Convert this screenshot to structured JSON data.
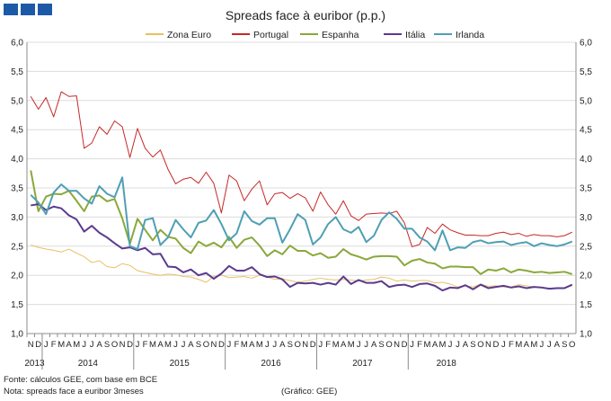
{
  "brand_color": "#1c5aa8",
  "footer": {
    "source": "Fonte: cálculos GEE, com base em BCE",
    "note": "Nota: spreads face a euribor 3meses",
    "credit": "(Gráfico: GEE)"
  },
  "chart_data": {
    "type": "line",
    "title": "Spreads face à euribor (p.p.)",
    "ylim": [
      1.0,
      6.0
    ],
    "yticks": [
      "1,0",
      "1,5",
      "2,0",
      "2,5",
      "3,0",
      "3,5",
      "4,0",
      "4,5",
      "5,0",
      "5,5",
      "6,0"
    ],
    "x": [
      "N",
      "D",
      "J",
      "F",
      "M",
      "A",
      "M",
      "J",
      "J",
      "A",
      "S",
      "O",
      "N",
      "D",
      "J",
      "F",
      "M",
      "A",
      "M",
      "J",
      "J",
      "A",
      "S",
      "O",
      "N",
      "D",
      "J",
      "F",
      "M",
      "A",
      "M",
      "J",
      "J",
      "A",
      "S",
      "O",
      "N",
      "D",
      "J",
      "F",
      "M",
      "A",
      "M",
      "J",
      "J",
      "A",
      "S",
      "O",
      "N",
      "D",
      "J",
      "F",
      "M",
      "A",
      "M",
      "J",
      "J",
      "A",
      "S",
      "O",
      "N",
      "D",
      "J",
      "F",
      "M",
      "A",
      "M",
      "J",
      "J",
      "A",
      "S",
      "O"
    ],
    "years": [
      {
        "label": "2013",
        "start": 0,
        "end": 1
      },
      {
        "label": "2014",
        "start": 2,
        "end": 13
      },
      {
        "label": "2015",
        "start": 14,
        "end": 25
      },
      {
        "label": "2016",
        "start": 26,
        "end": 37
      },
      {
        "label": "2017",
        "start": 38,
        "end": 49
      },
      {
        "label": "2018",
        "start": 50,
        "end": 59
      }
    ],
    "grid": true,
    "legend_position": "top",
    "series": [
      {
        "name": "Zona Euro",
        "color": "#e8c061",
        "width": 1,
        "values": [
          2.52,
          2.48,
          2.45,
          2.43,
          2.4,
          2.45,
          2.38,
          2.32,
          2.22,
          2.25,
          2.15,
          2.13,
          2.2,
          2.17,
          2.08,
          2.05,
          2.02,
          2.0,
          2.02,
          2.01,
          1.98,
          1.97,
          1.93,
          1.88,
          1.98,
          2.0,
          1.96,
          1.97,
          1.98,
          1.95,
          2.0,
          1.97,
          1.93,
          1.94,
          1.91,
          1.88,
          1.9,
          1.93,
          1.95,
          1.93,
          1.92,
          1.93,
          1.92,
          1.9,
          1.92,
          1.93,
          1.97,
          1.95,
          1.9,
          1.92,
          1.9,
          1.91,
          1.91,
          1.87,
          1.88,
          1.85,
          1.8,
          1.82,
          1.8,
          1.85,
          1.81,
          1.82,
          1.8,
          1.8,
          1.84,
          1.82,
          1.8,
          1.8,
          1.77,
          1.78,
          1.78,
          1.82
        ]
      },
      {
        "name": "Portugal",
        "color": "#c62828",
        "width": 1,
        "values": [
          5.07,
          4.85,
          5.05,
          4.72,
          5.15,
          5.07,
          5.08,
          4.18,
          4.27,
          4.55,
          4.42,
          4.65,
          4.55,
          4.02,
          4.52,
          4.18,
          4.03,
          4.15,
          3.82,
          3.57,
          3.65,
          3.68,
          3.58,
          3.77,
          3.58,
          3.07,
          3.72,
          3.62,
          3.28,
          3.48,
          3.62,
          3.21,
          3.4,
          3.42,
          3.32,
          3.4,
          3.33,
          3.1,
          3.43,
          3.21,
          3.05,
          3.28,
          3.02,
          2.94,
          3.05,
          3.06,
          3.07,
          3.06,
          3.1,
          2.9,
          2.49,
          2.53,
          2.82,
          2.72,
          2.88,
          2.78,
          2.73,
          2.69,
          2.69,
          2.68,
          2.68,
          2.72,
          2.74,
          2.7,
          2.72,
          2.67,
          2.7,
          2.68,
          2.68,
          2.66,
          2.68,
          2.74
        ]
      },
      {
        "name": "Espanha",
        "color": "#8aa83a",
        "width": 2,
        "values": [
          3.8,
          3.1,
          3.35,
          3.4,
          3.39,
          3.45,
          3.28,
          3.1,
          3.35,
          3.37,
          3.27,
          3.31,
          2.98,
          2.54,
          2.97,
          2.78,
          2.6,
          2.78,
          2.66,
          2.63,
          2.47,
          2.38,
          2.58,
          2.5,
          2.56,
          2.48,
          2.66,
          2.47,
          2.61,
          2.65,
          2.51,
          2.33,
          2.43,
          2.36,
          2.51,
          2.42,
          2.42,
          2.34,
          2.38,
          2.3,
          2.32,
          2.45,
          2.36,
          2.32,
          2.27,
          2.32,
          2.33,
          2.33,
          2.32,
          2.17,
          2.25,
          2.28,
          2.22,
          2.2,
          2.12,
          2.15,
          2.15,
          2.14,
          2.14,
          2.02,
          2.1,
          2.08,
          2.12,
          2.05,
          2.1,
          2.08,
          2.05,
          2.06,
          2.04,
          2.05,
          2.06,
          2.02
        ]
      },
      {
        "name": "Itália",
        "color": "#5b3a8e",
        "width": 2,
        "values": [
          3.2,
          3.22,
          3.12,
          3.18,
          3.15,
          3.03,
          2.96,
          2.75,
          2.85,
          2.73,
          2.65,
          2.55,
          2.46,
          2.48,
          2.43,
          2.47,
          2.36,
          2.37,
          2.15,
          2.14,
          2.05,
          2.1,
          2.0,
          2.04,
          1.94,
          2.03,
          2.16,
          2.08,
          2.08,
          2.14,
          2.02,
          1.97,
          1.98,
          1.93,
          1.8,
          1.87,
          1.86,
          1.87,
          1.84,
          1.87,
          1.84,
          1.98,
          1.85,
          1.92,
          1.87,
          1.87,
          1.9,
          1.8,
          1.83,
          1.84,
          1.8,
          1.85,
          1.86,
          1.82,
          1.74,
          1.79,
          1.78,
          1.83,
          1.76,
          1.84,
          1.78,
          1.8,
          1.82,
          1.79,
          1.81,
          1.78,
          1.8,
          1.79,
          1.77,
          1.78,
          1.78,
          1.84
        ]
      },
      {
        "name": "Irlanda",
        "color": "#4f9fb3",
        "width": 2,
        "values": [
          3.38,
          3.25,
          3.05,
          3.42,
          3.56,
          3.45,
          3.45,
          3.32,
          3.23,
          3.53,
          3.4,
          3.34,
          3.68,
          2.5,
          2.45,
          2.95,
          2.98,
          2.52,
          2.65,
          2.95,
          2.79,
          2.65,
          2.9,
          2.94,
          3.12,
          2.88,
          2.6,
          2.72,
          3.1,
          2.93,
          2.87,
          2.98,
          2.98,
          2.56,
          2.79,
          3.05,
          2.95,
          2.53,
          2.65,
          2.88,
          3.0,
          2.79,
          2.73,
          2.83,
          2.57,
          2.68,
          2.95,
          3.08,
          2.97,
          2.8,
          2.8,
          2.65,
          2.58,
          2.43,
          2.77,
          2.43,
          2.48,
          2.47,
          2.57,
          2.6,
          2.55,
          2.57,
          2.58,
          2.52,
          2.55,
          2.57,
          2.5,
          2.55,
          2.52,
          2.5,
          2.53,
          2.58
        ]
      }
    ]
  }
}
